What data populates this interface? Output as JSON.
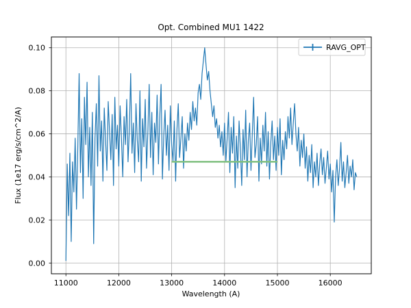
{
  "figure": {
    "background": "#ffffff",
    "spine_color": "#000000"
  },
  "chart_data": {
    "type": "line",
    "title": "Opt. Combined MU1 1422",
    "xlabel": "Wavelength (A)",
    "ylabel": "Flux (1e17 erg/s/cm^2/A)",
    "xlim": [
      10725,
      16775
    ],
    "ylim": [
      -0.005,
      0.105
    ],
    "xticks": [
      11000,
      12000,
      13000,
      14000,
      15000,
      16000
    ],
    "yticks": [
      0.0,
      0.02,
      0.04,
      0.06,
      0.08,
      0.1
    ],
    "grid": true,
    "grid_color": "#b0b0b0",
    "legend": {
      "label": "RAVG_OPT",
      "position": "upper right",
      "marker": "errorbar"
    },
    "series": [
      {
        "name": "RAVG_OPT",
        "style": "errorbar-line",
        "color": "#1f77b4",
        "x_start": 11000,
        "x_step": 25,
        "values": [
          0.001,
          0.046,
          0.022,
          0.051,
          0.01,
          0.047,
          0.033,
          0.058,
          0.025,
          0.054,
          0.088,
          0.042,
          0.067,
          0.03,
          0.077,
          0.055,
          0.084,
          0.04,
          0.063,
          0.036,
          0.07,
          0.009,
          0.058,
          0.074,
          0.045,
          0.087,
          0.052,
          0.066,
          0.038,
          0.072,
          0.057,
          0.043,
          0.075,
          0.061,
          0.048,
          0.069,
          0.036,
          0.077,
          0.053,
          0.064,
          0.045,
          0.073,
          0.058,
          0.04,
          0.068,
          0.055,
          0.076,
          0.047,
          0.062,
          0.088,
          0.051,
          0.065,
          0.042,
          0.074,
          0.057,
          0.047,
          0.08,
          0.038,
          0.067,
          0.054,
          0.076,
          0.044,
          0.061,
          0.083,
          0.049,
          0.07,
          0.041,
          0.065,
          0.056,
          0.078,
          0.046,
          0.068,
          0.083,
          0.039,
          0.059,
          0.071,
          0.05,
          0.064,
          0.043,
          0.073,
          0.055,
          0.047,
          0.066,
          0.038,
          0.062,
          0.074,
          0.049,
          0.058,
          0.068,
          0.044,
          0.06,
          0.052,
          0.065,
          0.057,
          0.07,
          0.062,
          0.075,
          0.066,
          0.072,
          0.064,
          0.079,
          0.083,
          0.076,
          0.088,
          0.094,
          0.1,
          0.092,
          0.085,
          0.089,
          0.08,
          0.074,
          0.068,
          0.073,
          0.063,
          0.067,
          0.058,
          0.064,
          0.054,
          0.061,
          0.05,
          0.065,
          0.047,
          0.058,
          0.07,
          0.042,
          0.063,
          0.051,
          0.068,
          0.035,
          0.059,
          0.044,
          0.066,
          0.053,
          0.036,
          0.062,
          0.048,
          0.071,
          0.04,
          0.057,
          0.065,
          0.043,
          0.06,
          0.077,
          0.049,
          0.055,
          0.068,
          0.038,
          0.058,
          0.046,
          0.064,
          0.052,
          0.07,
          0.045,
          0.061,
          0.039,
          0.056,
          0.066,
          0.048,
          0.059,
          0.043,
          0.063,
          0.05,
          0.067,
          0.041,
          0.057,
          0.048,
          0.061,
          0.053,
          0.068,
          0.058,
          0.072,
          0.055,
          0.065,
          0.074,
          0.06,
          0.052,
          0.063,
          0.045,
          0.057,
          0.049,
          0.06,
          0.044,
          0.054,
          0.038,
          0.05,
          0.042,
          0.055,
          0.035,
          0.047,
          0.04,
          0.051,
          0.036,
          0.046,
          0.053,
          0.041,
          0.049,
          0.037,
          0.044,
          0.052,
          0.039,
          0.046,
          0.033,
          0.043,
          0.019,
          0.04,
          0.048,
          0.036,
          0.044,
          0.056,
          0.038,
          0.047,
          0.035,
          0.042,
          0.05,
          0.037,
          0.045,
          0.04,
          0.048,
          0.034,
          0.042,
          0.04
        ]
      },
      {
        "name": "reference-segment",
        "style": "line",
        "color": "#80c080",
        "x": [
          13000,
          15000
        ],
        "values": [
          0.047,
          0.047
        ]
      }
    ]
  }
}
